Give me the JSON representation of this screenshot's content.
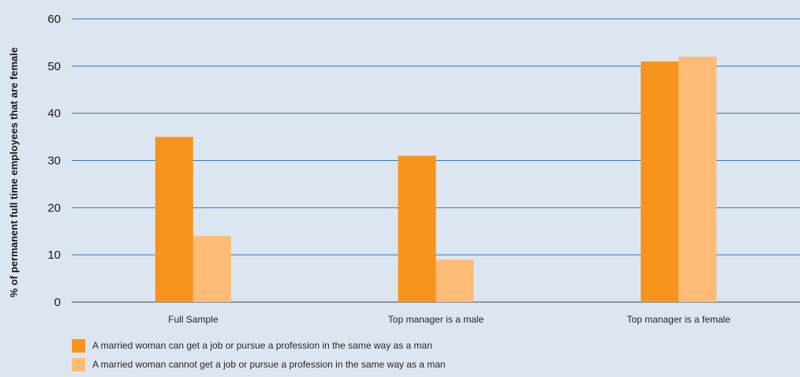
{
  "chart_data": {
    "type": "bar",
    "title": "",
    "xlabel": "",
    "ylabel": "% of permanent full time employees that are female",
    "categories": [
      "Full Sample",
      "Top manager is a male",
      "Top manager is a female"
    ],
    "series": [
      {
        "name": "A married woman can get a job or pursue a profession in the same way as a man",
        "color": "#f7941d",
        "values": [
          35,
          31,
          51
        ]
      },
      {
        "name": "A married woman cannot get a job or pursue a profession in the same way as a man",
        "color": "#fdbb76",
        "values": [
          14,
          9,
          52
        ]
      }
    ],
    "ylim": [
      0,
      60
    ],
    "yticks": [
      0,
      10,
      20,
      30,
      40,
      50,
      60
    ],
    "grid": true,
    "legend_position": "bottom-left",
    "background_color": "#dce6f0",
    "gridline_color": "#2e7bbf"
  }
}
